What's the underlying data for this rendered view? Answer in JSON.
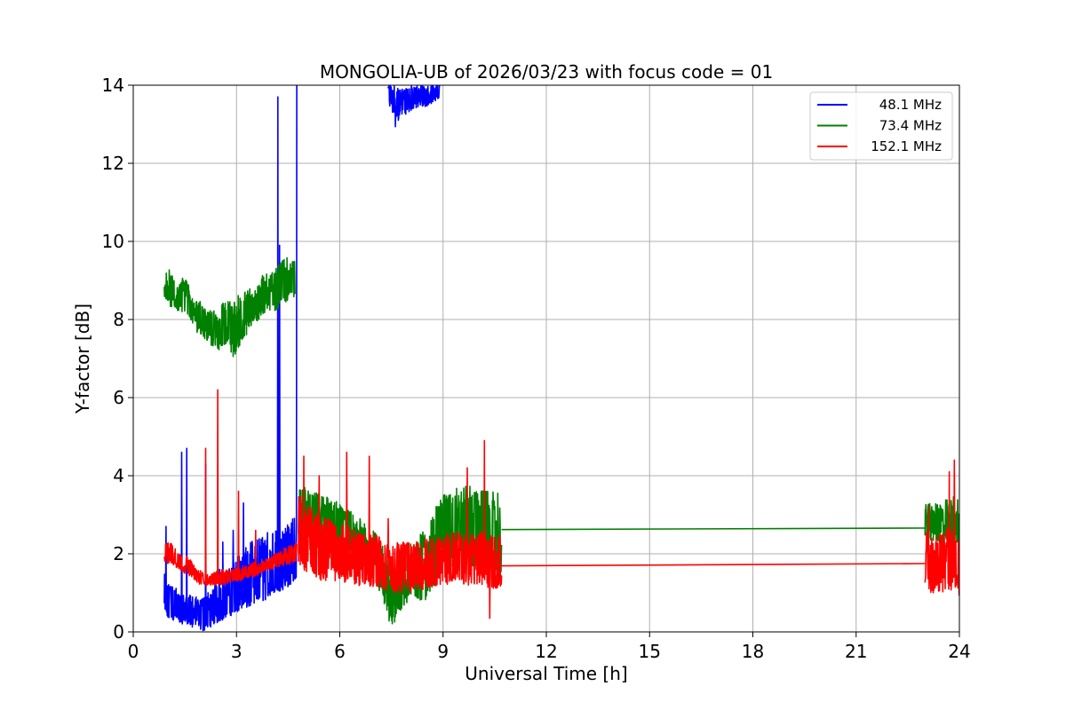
{
  "chart_data": {
    "type": "line",
    "title": "MONGOLIA-UB of 2026/03/23 with focus code = 01",
    "xlabel": "Universal Time [h]",
    "ylabel": "Y-factor [dB]",
    "xlim": [
      0,
      24
    ],
    "ylim": [
      0,
      14
    ],
    "xticks": [
      0,
      3,
      6,
      9,
      12,
      15,
      18,
      21,
      24
    ],
    "yticks": [
      0,
      2,
      4,
      6,
      8,
      10,
      12,
      14
    ],
    "grid": true,
    "legend_position": "top-right",
    "series": [
      {
        "name": "48.1 MHz",
        "color": "#0000ff",
        "segments": [
          {
            "x": [
              0.9,
              1.0,
              1.1,
              1.2,
              1.3,
              1.4,
              1.5,
              1.6,
              1.7,
              1.8,
              1.9,
              2.0,
              2.2,
              2.4,
              2.6,
              2.8,
              3.0,
              3.2,
              3.4,
              3.6,
              3.8,
              4.0,
              4.2,
              4.4,
              4.6,
              4.75
            ],
            "y": [
              0.8,
              0.7,
              0.6,
              0.7,
              0.6,
              0.5,
              0.6,
              0.5,
              0.4,
              0.5,
              0.4,
              0.4,
              0.5,
              0.6,
              0.6,
              0.7,
              0.8,
              0.9,
              1.0,
              1.1,
              1.2,
              1.3,
              1.4,
              1.6,
              1.8,
              2.0
            ],
            "lower": [
              0.4,
              0.3,
              0.3,
              0.3,
              0.2,
              0.2,
              0.2,
              0.2,
              0.1,
              0.1,
              0.1,
              0.0,
              0.1,
              0.2,
              0.3,
              0.4,
              0.5,
              0.6,
              0.6,
              0.7,
              0.8,
              0.9,
              1.0,
              1.1,
              1.2,
              1.4
            ],
            "upper": [
              1.5,
              1.3,
              1.2,
              1.2,
              1.1,
              1.0,
              1.0,
              1.0,
              0.9,
              0.9,
              0.9,
              0.9,
              1.1,
              1.3,
              1.5,
              1.7,
              1.9,
              2.1,
              2.3,
              2.4,
              2.5,
              2.6,
              2.7,
              2.8,
              3.0,
              3.2
            ],
            "spikes": [
              [
                0.95,
                2.7
              ],
              [
                1.4,
                4.6
              ],
              [
                1.55,
                4.7
              ],
              [
                2.1,
                4.3
              ],
              [
                2.5,
                1.6
              ],
              [
                2.6,
                2.3
              ],
              [
                2.9,
                2.6
              ],
              [
                3.2,
                3.3
              ],
              [
                4.2,
                13.7
              ],
              [
                4.25,
                9.9
              ],
              [
                4.75,
                14.0
              ]
            ]
          },
          {
            "x": [
              7.4,
              7.6,
              7.8,
              8.0,
              8.2,
              8.4,
              8.6,
              8.8,
              8.9
            ],
            "y": [
              13.9,
              13.6,
              13.5,
              13.6,
              13.7,
              13.8,
              13.8,
              13.9,
              13.9
            ],
            "lower": [
              13.6,
              12.9,
              13.2,
              13.3,
              13.4,
              13.4,
              13.5,
              13.6,
              13.7
            ],
            "upper": [
              14.0,
              14.0,
              14.0,
              14.0,
              14.0,
              14.0,
              14.0,
              14.0,
              14.0
            ],
            "spikes": []
          }
        ]
      },
      {
        "name": "73.4 MHz",
        "color": "#008000",
        "segments": [
          {
            "x": [
              0.9,
              1.1,
              1.3,
              1.5,
              1.7,
              1.9,
              2.1,
              2.3,
              2.5,
              2.7,
              2.9,
              3.1,
              3.3,
              3.5,
              3.7,
              3.9,
              4.1,
              4.3,
              4.5,
              4.7
            ],
            "y": [
              9.1,
              8.7,
              8.5,
              8.7,
              8.3,
              8.1,
              8.0,
              7.8,
              7.7,
              7.9,
              7.8,
              7.8,
              8.1,
              8.3,
              8.5,
              8.8,
              8.7,
              8.7,
              9.0,
              9.0
            ],
            "lower": [
              8.6,
              8.3,
              8.2,
              8.2,
              7.9,
              7.6,
              7.5,
              7.3,
              7.2,
              7.4,
              7.0,
              7.3,
              7.6,
              7.9,
              8.0,
              8.2,
              8.2,
              8.3,
              8.5,
              8.6
            ],
            "upper": [
              9.5,
              9.2,
              8.8,
              9.2,
              8.6,
              8.5,
              8.3,
              8.2,
              8.3,
              8.6,
              8.4,
              8.7,
              8.8,
              8.8,
              9.1,
              9.2,
              9.3,
              9.5,
              9.6,
              9.5
            ],
            "spikes": [
              [
                4.75,
                8.6
              ],
              [
                4.78,
                5.0
              ]
            ]
          },
          {
            "x": [
              4.8,
              5.0,
              5.5,
              6.0,
              6.5,
              7.0,
              7.3,
              7.5,
              7.8,
              8.0,
              8.5,
              9.0,
              9.5,
              10.0,
              10.5,
              10.7
            ],
            "y": [
              3.0,
              3.0,
              2.9,
              2.6,
              2.3,
              1.9,
              1.3,
              0.6,
              1.0,
              1.5,
              1.7,
              2.8,
              2.9,
              2.9,
              2.8,
              2.7
            ],
            "lower": [
              2.4,
              2.3,
              2.2,
              1.8,
              1.6,
              1.3,
              0.6,
              0.0,
              0.6,
              0.8,
              0.8,
              1.5,
              1.6,
              1.6,
              1.6,
              1.5
            ],
            "upper": [
              3.7,
              3.7,
              3.5,
              3.3,
              3.0,
              2.6,
              2.1,
              1.5,
              1.8,
              2.2,
              2.7,
              3.6,
              3.8,
              3.7,
              3.6,
              3.5
            ],
            "spikes": []
          },
          {
            "x": [
              10.7,
              23.0
            ],
            "y": [
              2.62,
              2.66
            ],
            "lower": [
              2.62,
              2.66
            ],
            "upper": [
              2.62,
              2.66
            ],
            "spikes": []
          },
          {
            "x": [
              23.0,
              23.3,
              23.6,
              23.9,
              24.0
            ],
            "y": [
              2.8,
              2.8,
              2.7,
              2.7,
              2.6
            ],
            "lower": [
              2.4,
              2.3,
              2.2,
              2.2,
              2.1
            ],
            "upper": [
              3.3,
              3.3,
              3.4,
              3.5,
              3.3
            ],
            "spikes": []
          }
        ]
      },
      {
        "name": "152.1 MHz",
        "color": "#ff0000",
        "segments": [
          {
            "x": [
              0.9,
              1.1,
              1.3,
              1.5,
              1.7,
              1.9,
              2.1,
              2.3,
              2.5,
              2.7,
              2.9,
              3.1,
              3.3,
              3.5,
              3.7,
              3.9,
              4.1,
              4.3,
              4.5,
              4.75
            ],
            "y": [
              2.0,
              2.0,
              1.8,
              1.8,
              1.6,
              1.4,
              1.3,
              1.3,
              1.4,
              1.4,
              1.4,
              1.4,
              1.5,
              1.6,
              1.6,
              1.7,
              1.8,
              1.8,
              1.9,
              2.0
            ],
            "lower": [
              1.8,
              1.7,
              1.6,
              1.5,
              1.4,
              1.2,
              1.2,
              1.2,
              1.2,
              1.2,
              1.3,
              1.3,
              1.4,
              1.4,
              1.5,
              1.6,
              1.6,
              1.7,
              1.7,
              1.8
            ],
            "upper": [
              2.3,
              2.4,
              2.0,
              2.0,
              1.8,
              1.6,
              1.5,
              1.5,
              1.6,
              1.6,
              1.6,
              1.7,
              1.7,
              1.8,
              1.8,
              1.9,
              2.0,
              2.1,
              2.2,
              2.3
            ],
            "spikes": [
              [
                2.1,
                4.7
              ],
              [
                2.45,
                6.2
              ],
              [
                3.05,
                3.6
              ],
              [
                3.55,
                2.6
              ]
            ]
          },
          {
            "x": [
              4.8,
              5.0,
              5.5,
              6.0,
              6.5,
              7.0,
              7.5,
              8.0,
              8.5,
              9.0,
              9.5,
              10.0,
              10.5,
              10.7
            ],
            "y": [
              2.4,
              2.2,
              2.0,
              1.9,
              1.8,
              1.7,
              1.5,
              1.5,
              1.6,
              1.7,
              1.7,
              1.8,
              1.7,
              1.7
            ],
            "lower": [
              1.8,
              1.5,
              1.3,
              1.3,
              1.2,
              1.1,
              1.0,
              1.0,
              1.1,
              1.2,
              1.2,
              1.2,
              1.1,
              1.1
            ],
            "upper": [
              3.6,
              3.3,
              3.0,
              2.8,
              2.6,
              2.5,
              2.3,
              2.3,
              2.4,
              2.5,
              2.6,
              2.6,
              2.5,
              2.5
            ],
            "spikes": [
              [
                4.95,
                4.5
              ],
              [
                5.4,
                4.0
              ],
              [
                6.2,
                4.6
              ],
              [
                6.85,
                4.5
              ],
              [
                7.4,
                2.9
              ],
              [
                9.7,
                4.2
              ],
              [
                10.2,
                4.9
              ],
              [
                10.35,
                0.35
              ]
            ]
          },
          {
            "x": [
              10.7,
              23.0
            ],
            "y": [
              1.69,
              1.75
            ],
            "lower": [
              1.69,
              1.75
            ],
            "upper": [
              1.69,
              1.75
            ],
            "spikes": []
          },
          {
            "x": [
              23.0,
              23.3,
              23.6,
              23.9,
              24.0
            ],
            "y": [
              1.6,
              1.6,
              1.7,
              1.7,
              1.6
            ],
            "lower": [
              1.0,
              1.0,
              1.0,
              1.0,
              0.9
            ],
            "upper": [
              2.6,
              2.4,
              2.7,
              2.6,
              2.5
            ],
            "spikes": [
              [
                23.1,
                3.2
              ],
              [
                23.7,
                4.1
              ],
              [
                23.85,
                4.4
              ]
            ]
          }
        ]
      }
    ]
  }
}
